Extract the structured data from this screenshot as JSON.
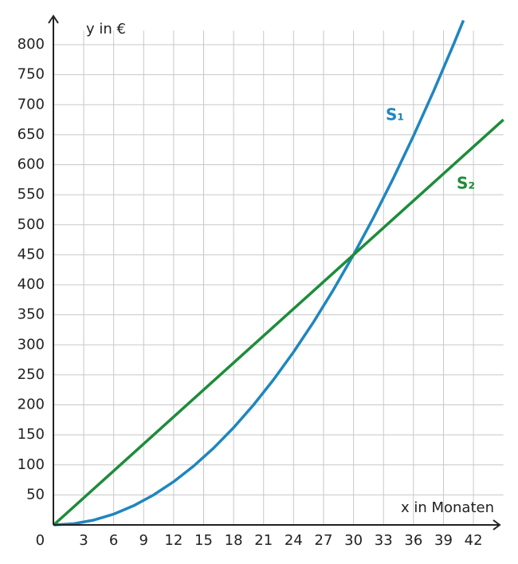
{
  "chart_data": {
    "type": "line",
    "x_label": "x in Monaten",
    "y_label": "y in €",
    "xlim": [
      0,
      45
    ],
    "ylim": [
      0,
      850
    ],
    "xticks": [
      0,
      3,
      6,
      9,
      12,
      15,
      18,
      21,
      24,
      27,
      30,
      33,
      36,
      39,
      42
    ],
    "yticks": [
      50,
      100,
      150,
      200,
      250,
      300,
      350,
      400,
      450,
      500,
      550,
      600,
      650,
      700,
      750,
      800
    ],
    "grid": true,
    "series": [
      {
        "name": "S₁",
        "color": "#1f86bf",
        "x": [
          0,
          2,
          4,
          6,
          8,
          10,
          12,
          14,
          16,
          18,
          20,
          22,
          24,
          26,
          28,
          30,
          32,
          34,
          36,
          38,
          40,
          41
        ],
        "values": [
          0,
          2,
          8,
          18,
          32,
          50,
          72,
          98,
          128,
          162,
          200,
          242,
          288,
          338,
          392,
          450,
          512,
          578,
          648,
          722,
          800,
          840.5
        ]
      },
      {
        "name": "S₂",
        "color": "#1e8c3a",
        "x": [
          0,
          45
        ],
        "values": [
          0,
          675
        ]
      }
    ]
  }
}
